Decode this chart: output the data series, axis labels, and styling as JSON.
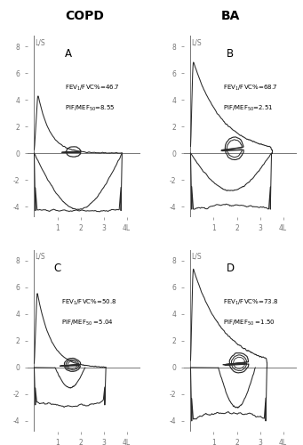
{
  "title_left": "COPD",
  "title_right": "BA",
  "annotations": [
    {
      "line1": "FEV$_1$/FVC%=46.7",
      "line2": "PIF/MEF$_{50}$=8.55"
    },
    {
      "line1": "FEV$_1$/FVC%=68.7",
      "line2": "PIF/MEF$_{50}$=2.51"
    },
    {
      "line1": "FEV$_1$/FVC%=50.8",
      "line2": "PIF/MEF$_{50}$ =5.04"
    },
    {
      "line1": "FEV$_1$/FVC%=73.8",
      "line2": "PIF/MEF$_{50}$ =1.50"
    }
  ],
  "ylim": [
    -4.8,
    8.8
  ],
  "xlim": [
    -0.3,
    4.6
  ],
  "yticks": [
    -4,
    -2,
    0,
    2,
    4,
    6,
    8
  ],
  "xticks": [
    1,
    2,
    3,
    4
  ],
  "line_color": "#2a2a2a",
  "bg_color": "#ffffff",
  "axis_color": "#777777",
  "tick_fontsize": 5.5,
  "label_fontsize": 5.5,
  "annot_fontsize": 5.0,
  "panel_fontsize": 8.5,
  "title_fontsize": 10
}
